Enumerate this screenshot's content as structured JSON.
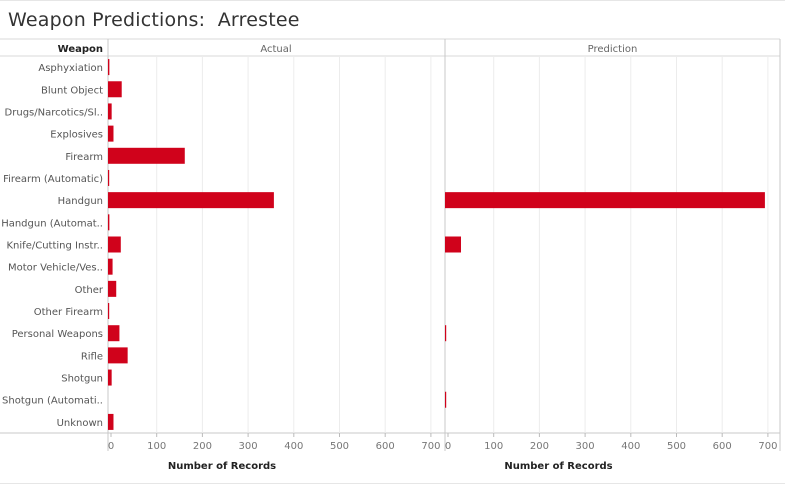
{
  "title": "Weapon Predictions:  Arrestee",
  "row_header": "Weapon",
  "chart_data": {
    "type": "bar",
    "orientation": "horizontal",
    "categories": [
      "Asphyxiation",
      "Blunt Object",
      "Drugs/Narcotics/Sl..",
      "Explosives",
      "Firearm",
      "Firearm (Automatic)",
      "Handgun",
      "Handgun (Automat..",
      "Knife/Cutting Instr..",
      "Motor Vehicle/Ves..",
      "Other",
      "Other Firearm",
      "Personal Weapons",
      "Rifle",
      "Shotgun",
      "Shotgun (Automati..",
      "Unknown"
    ],
    "series": [
      {
        "name": "Actual",
        "values": [
          3,
          30,
          8,
          12,
          168,
          1,
          363,
          3,
          28,
          10,
          18,
          1,
          25,
          43,
          8,
          0,
          12
        ]
      },
      {
        "name": "Prediction",
        "values": [
          0,
          0,
          0,
          0,
          0,
          0,
          700,
          0,
          35,
          0,
          0,
          0,
          1,
          0,
          0,
          2,
          0
        ]
      }
    ],
    "xlabel": "Number of Records",
    "xlim": [
      0,
      740
    ],
    "xticks": [
      0,
      100,
      200,
      300,
      400,
      500,
      600,
      700
    ],
    "grid": "vertical",
    "color": "#d0021b"
  }
}
